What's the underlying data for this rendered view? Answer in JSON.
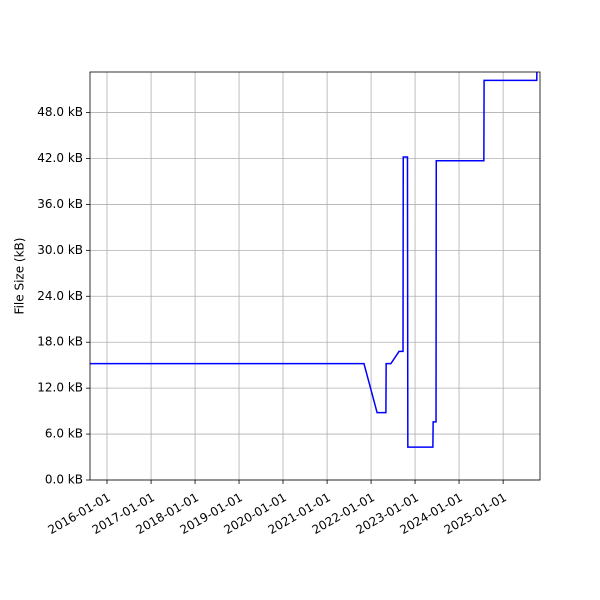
{
  "chart_data": {
    "type": "line",
    "ylabel": "File Size (kB)",
    "x": [
      "2015-08-13",
      "2021-11-03",
      "2022-02-20",
      "2022-05-04",
      "2022-05-06",
      "2022-06-14",
      "2022-08-21",
      "2022-09-23",
      "2022-09-25",
      "2022-10-30",
      "2022-11-02",
      "2023-05-29",
      "2023-05-31",
      "2023-06-24",
      "2023-06-26",
      "2024-07-25",
      "2024-07-27",
      "2025-10-07",
      "2025-10-09"
    ],
    "series": [
      {
        "name": "File Size",
        "color": "#0000ff",
        "values": [
          15.2,
          15.2,
          8.8,
          8.8,
          15.2,
          15.2,
          16.8,
          16.8,
          42.2,
          42.2,
          4.3,
          4.3,
          7.6,
          7.6,
          41.7,
          41.7,
          52.2,
          52.2,
          54
        ]
      }
    ],
    "xlim": [
      "2015-08-13",
      "2025-11-03"
    ],
    "xticks": [
      "2016-01-01",
      "2017-01-01",
      "2018-01-01",
      "2019-01-01",
      "2020-01-01",
      "2021-01-01",
      "2022-01-01",
      "2023-01-01",
      "2024-01-01",
      "2025-01-01"
    ],
    "ylim": [
      0,
      53.3
    ],
    "yticks": [
      {
        "value": 0,
        "label": "0.0 kB"
      },
      {
        "value": 6,
        "label": "6.0 kB"
      },
      {
        "value": 12,
        "label": "12.0 kB"
      },
      {
        "value": 18,
        "label": "18.0 kB"
      },
      {
        "value": 24,
        "label": "24.0 kB"
      },
      {
        "value": 30,
        "label": "30.0 kB"
      },
      {
        "value": 36,
        "label": "36.0 kB"
      },
      {
        "value": 42,
        "label": "42.0 kB"
      },
      {
        "value": 48,
        "label": "48.0 kB"
      }
    ],
    "grid": true
  }
}
